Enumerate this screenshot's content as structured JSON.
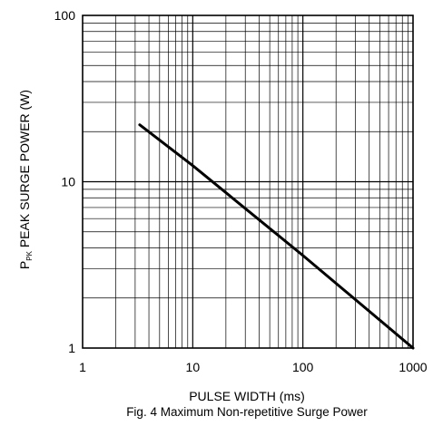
{
  "chart_data": {
    "type": "line",
    "x_scale": "log",
    "y_scale": "log",
    "xlim": [
      1,
      1000
    ],
    "ylim": [
      1,
      100
    ],
    "x_ticks": [
      "1",
      "10",
      "100",
      "1000"
    ],
    "y_ticks": [
      "1",
      "10",
      "100"
    ],
    "xlabel": "PULSE WIDTH (ms)",
    "ylabel": {
      "prefix": "P",
      "subscript": "PK",
      "suffix": " PEAK SURGE POWER (W)"
    },
    "caption": "Fig. 4  Maximum Non-repetitive Surge Power",
    "grid": true,
    "series": [
      {
        "x": [
          3.3,
          10,
          100,
          1000
        ],
        "y": [
          22,
          12.5,
          3.6,
          1.0
        ]
      }
    ]
  }
}
